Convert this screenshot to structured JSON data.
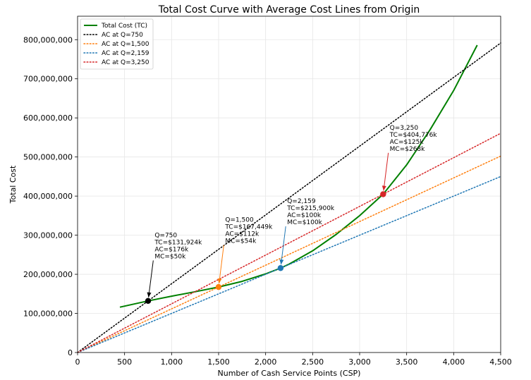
{
  "chart_data": {
    "type": "line",
    "title": "Total Cost Curve with Average Cost Lines from Origin",
    "xlabel": "Number of Cash Service Points (CSP)",
    "ylabel": "Total Cost",
    "xlim": [
      0,
      4500
    ],
    "ylim": [
      0,
      860000000
    ],
    "grid": true,
    "legend_position": "top-left",
    "x_ticks": [
      {
        "value": 0,
        "label": "0"
      },
      {
        "value": 500,
        "label": "500"
      },
      {
        "value": 1000,
        "label": "1,000"
      },
      {
        "value": 1500,
        "label": "1,500"
      },
      {
        "value": 2000,
        "label": "2,000"
      },
      {
        "value": 2500,
        "label": "2,500"
      },
      {
        "value": 3000,
        "label": "3,000"
      },
      {
        "value": 3500,
        "label": "3,500"
      },
      {
        "value": 4000,
        "label": "4,000"
      },
      {
        "value": 4500,
        "label": "4,500"
      }
    ],
    "y_ticks": [
      {
        "value": 0,
        "label": "0"
      },
      {
        "value": 100000000,
        "label": "100,000,000"
      },
      {
        "value": 200000000,
        "label": "200,000,000"
      },
      {
        "value": 300000000,
        "label": "300,000,000"
      },
      {
        "value": 400000000,
        "label": "400,000,000"
      },
      {
        "value": 500000000,
        "label": "500,000,000"
      },
      {
        "value": 600000000,
        "label": "600,000,000"
      },
      {
        "value": 700000000,
        "label": "700,000,000"
      },
      {
        "value": 800000000,
        "label": "800,000,000"
      }
    ],
    "series": [
      {
        "name": "Total Cost (TC)",
        "style": "solid",
        "color": "#008000",
        "x": [
          450,
          750,
          1000,
          1250,
          1500,
          1750,
          2000,
          2159,
          2250,
          2500,
          2750,
          3000,
          3250,
          3500,
          3750,
          4000,
          4250
        ],
        "y": [
          116000000,
          131924000,
          144000000,
          155500000,
          167449000,
          182000000,
          201000000,
          215900000,
          226000000,
          260000000,
          302000000,
          350000000,
          404776000,
          480000000,
          570000000,
          670000000,
          786000000
        ]
      },
      {
        "name": "AC at Q=750",
        "style": "dotted",
        "color": "#000000",
        "x": [
          0,
          4500
        ],
        "y": [
          0,
          791544000
        ]
      },
      {
        "name": "AC at Q=1,500",
        "style": "dotted",
        "color": "#ff7f0e",
        "x": [
          0,
          4500
        ],
        "y": [
          0,
          502347000
        ]
      },
      {
        "name": "AC at Q=2,159",
        "style": "dotted",
        "color": "#1f77b4",
        "x": [
          0,
          4500
        ],
        "y": [
          0,
          450000000
        ]
      },
      {
        "name": "AC at Q=3,250",
        "style": "dotted",
        "color": "#d62728",
        "x": [
          0,
          4500
        ],
        "y": [
          0,
          560459000
        ]
      }
    ],
    "points": [
      {
        "x": 750,
        "y": 131924000,
        "color": "#000000",
        "text_x": 820,
        "text_y": 295000000,
        "lines": [
          "Q=750",
          "TC=$131,924k",
          "AC=$176k",
          "MC=$50k"
        ]
      },
      {
        "x": 1500,
        "y": 167449000,
        "color": "#ff7f0e",
        "text_x": 1570,
        "text_y": 334000000,
        "lines": [
          "Q=1,500",
          "TC=$167,449k",
          "AC=$112k",
          "MC=$54k"
        ]
      },
      {
        "x": 2159,
        "y": 215900000,
        "color": "#1f77b4",
        "text_x": 2229,
        "text_y": 382000000,
        "lines": [
          "Q=2,159",
          "TC=$215,900k",
          "AC=$100k",
          "MC=$100k"
        ]
      },
      {
        "x": 3250,
        "y": 404776000,
        "color": "#d62728",
        "text_x": 3320,
        "text_y": 570000000,
        "lines": [
          "Q=3,250",
          "TC=$404,776k",
          "AC=$125k",
          "MC=$268k"
        ]
      }
    ]
  }
}
